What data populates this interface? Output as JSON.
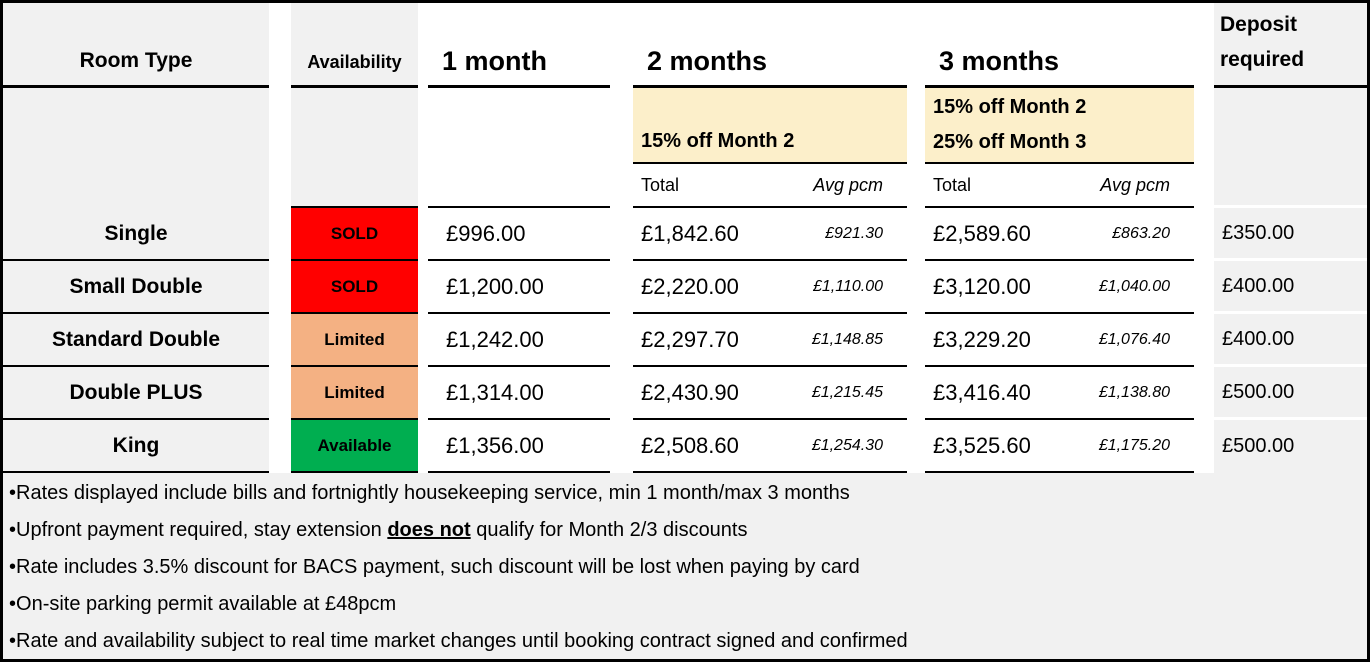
{
  "table": {
    "headers": {
      "room_type": "Room Type",
      "availability": "Availability",
      "one_month": "1 month",
      "two_months": "2 months",
      "three_months": "3 months",
      "deposit_line1": "Deposit",
      "deposit_line2": "required"
    },
    "promos": {
      "two_months": "15% off Month 2",
      "three_months_line1": "15% off Month 2",
      "three_months_line2": "25% off Month 3"
    },
    "subheaders": {
      "total": "Total",
      "avg": "Avg pcm"
    },
    "rows": [
      {
        "room": "Single",
        "availability": "SOLD",
        "status": "sold",
        "m1": "£996.00",
        "m2_total": "£1,842.60",
        "m2_avg": "£921.30",
        "m3_total": "£2,589.60",
        "m3_avg": "£863.20",
        "deposit": "£350.00"
      },
      {
        "room": "Small Double",
        "availability": "SOLD",
        "status": "sold",
        "m1": "£1,200.00",
        "m2_total": "£2,220.00",
        "m2_avg": "£1,110.00",
        "m3_total": "£3,120.00",
        "m3_avg": "£1,040.00",
        "deposit": "£400.00"
      },
      {
        "room": "Standard Double",
        "availability": "Limited",
        "status": "limited",
        "m1": "£1,242.00",
        "m2_total": "£2,297.70",
        "m2_avg": "£1,148.85",
        "m3_total": "£3,229.20",
        "m3_avg": "£1,076.40",
        "deposit": "£400.00"
      },
      {
        "room": "Double PLUS",
        "availability": "Limited",
        "status": "limited",
        "m1": "£1,314.00",
        "m2_total": "£2,430.90",
        "m2_avg": "£1,215.45",
        "m3_total": "£3,416.40",
        "m3_avg": "£1,138.80",
        "deposit": "£500.00"
      },
      {
        "room": "King",
        "availability": "Available",
        "status": "available",
        "m1": "£1,356.00",
        "m2_total": "£2,508.60",
        "m2_avg": "£1,254.30",
        "m3_total": "£3,525.60",
        "m3_avg": "£1,175.20",
        "deposit": "£500.00"
      }
    ]
  },
  "notes": {
    "bullet": "•",
    "items": [
      {
        "text": "Rates displayed include bills and fortnightly housekeeping service, min 1 month/max 3 months"
      },
      {
        "before": "Upfront payment required, stay extension ",
        "emphasis": "does not",
        "after": " qualify for Month 2/3 discounts"
      },
      {
        "text": "Rate includes 3.5% discount for BACS payment, such discount will be lost when paying by card"
      },
      {
        "text": "On-site parking permit available at £48pcm"
      },
      {
        "text": "Rate and availability subject to real time market changes until booking contract signed and confirmed"
      }
    ]
  },
  "colors": {
    "sold": "#FF0000",
    "limited": "#F4B183",
    "available": "#00AE50",
    "promo_banner": "#FCEFCA",
    "label_background": "#F1F1F1",
    "border": "#000000"
  }
}
